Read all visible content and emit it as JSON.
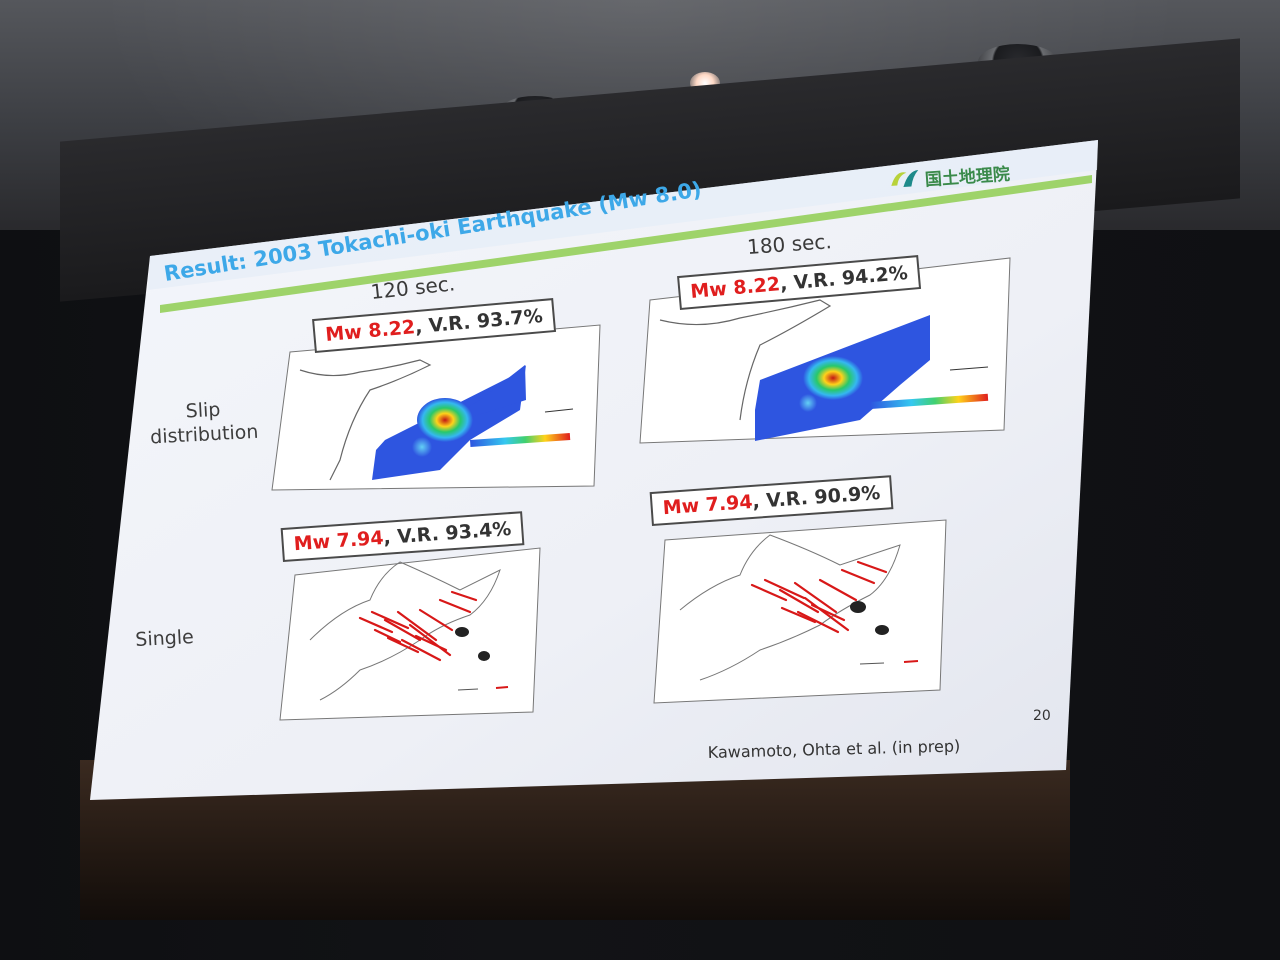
{
  "slide": {
    "title": "Result: 2003 Tokachi-oki Earthquake (Mw 8.0)",
    "logo_text": "国土地理院",
    "columns": [
      "120 sec.",
      "180 sec."
    ],
    "rows": [
      "Slip distribution",
      "Single"
    ],
    "panels": [
      {
        "mw": "Mw 8.22",
        "vr": ", V.R. 93.7%"
      },
      {
        "mw": "Mw 8.22",
        "vr": ", V.R. 94.2%"
      },
      {
        "mw": "Mw 7.94",
        "vr": ", V.R. 93.4%"
      },
      {
        "mw": "Mw 7.94",
        "vr": ", V.R. 90.9%"
      }
    ],
    "page_number": "20",
    "citation": "Kawamoto, Ohta et al. (in prep)"
  },
  "colors": {
    "title": "#3da8e8",
    "mw_label": "#e01e1e",
    "slip_fill": "#2e55e0",
    "vector": "#d81818",
    "header_line": "#9ed36a"
  }
}
